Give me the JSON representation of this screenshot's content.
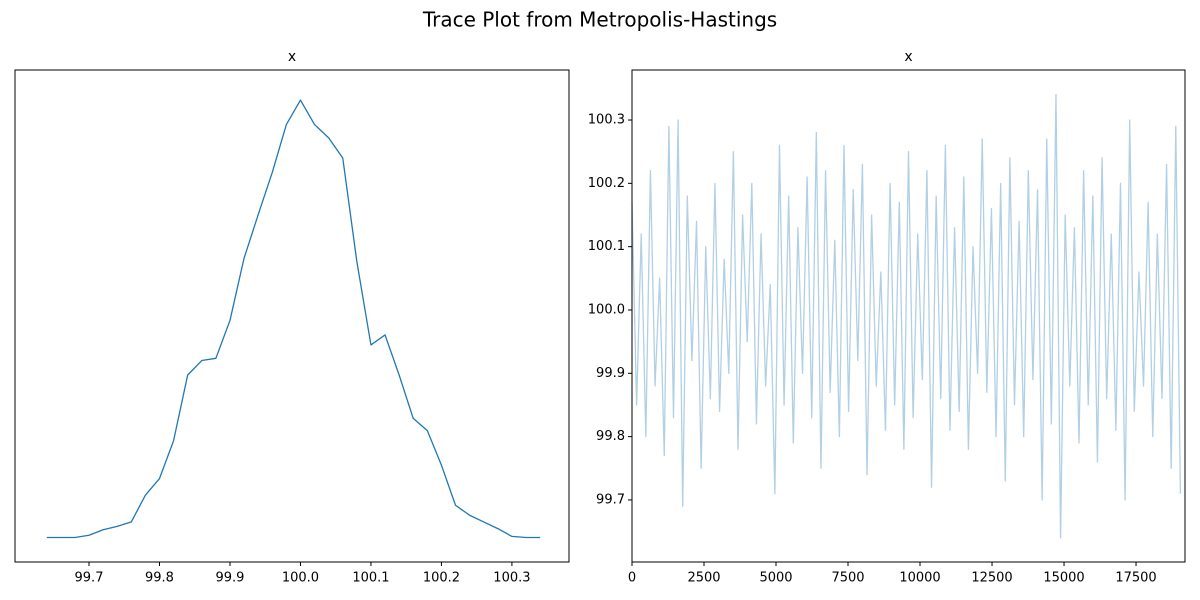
{
  "title": "Trace Plot from Metropolis-Hastings",
  "chart_data": [
    {
      "type": "line",
      "title": "x",
      "color": "#1f77b4",
      "x": [
        99.64,
        99.66,
        99.68,
        99.7,
        99.72,
        99.74,
        99.76,
        99.78,
        99.8,
        99.82,
        99.84,
        99.86,
        99.88,
        99.9,
        99.92,
        99.94,
        99.96,
        99.98,
        100.0,
        100.02,
        100.04,
        100.06,
        100.08,
        100.1,
        100.12,
        100.14,
        100.16,
        100.18,
        100.2,
        100.22,
        100.24,
        100.26,
        100.28,
        100.3,
        100.32,
        100.34
      ],
      "values": [
        0.0,
        0.0,
        0.0,
        0.02,
        0.07,
        0.1,
        0.14,
        0.38,
        0.53,
        0.87,
        1.46,
        1.59,
        1.61,
        1.95,
        2.51,
        2.9,
        3.28,
        3.71,
        3.93,
        3.71,
        3.59,
        3.41,
        2.48,
        1.73,
        1.82,
        1.46,
        1.07,
        0.96,
        0.65,
        0.29,
        0.2,
        0.14,
        0.08,
        0.01,
        0.0,
        0.0
      ],
      "xlim": [
        99.595,
        100.381
      ],
      "ylim": [
        -0.22,
        4.2
      ],
      "xticks": [
        99.7,
        99.8,
        99.9,
        {
          "value": 100,
          "label": "100.0"
        },
        100.1,
        100.2,
        100.3
      ]
    },
    {
      "type": "line",
      "title": "x",
      "color": "#b1cfe5",
      "x": [
        0,
        160,
        320,
        480,
        640,
        800,
        960,
        1120,
        1280,
        1440,
        1600,
        1760,
        1920,
        2080,
        2240,
        2400,
        2560,
        2720,
        2880,
        3040,
        3200,
        3360,
        3520,
        3680,
        3840,
        4000,
        4160,
        4320,
        4480,
        4640,
        4800,
        4960,
        5120,
        5280,
        5440,
        5600,
        5760,
        5920,
        6080,
        6240,
        6400,
        6560,
        6720,
        6880,
        7040,
        7200,
        7360,
        7520,
        7680,
        7840,
        8000,
        8160,
        8320,
        8480,
        8640,
        8800,
        8960,
        9120,
        9280,
        9440,
        9600,
        9760,
        9920,
        10080,
        10240,
        10400,
        10560,
        10720,
        10880,
        11040,
        11200,
        11360,
        11520,
        11680,
        11840,
        12000,
        12160,
        12320,
        12480,
        12640,
        12800,
        12960,
        13120,
        13280,
        13440,
        13600,
        13760,
        13920,
        14080,
        14240,
        14400,
        14560,
        14720,
        14880,
        15040,
        15200,
        15360,
        15520,
        15680,
        15840,
        16000,
        16160,
        16320,
        16480,
        16640,
        16800,
        16960,
        17120,
        17280,
        17440,
        17600,
        17760,
        17920,
        18080,
        18240,
        18400,
        18560,
        18720,
        18880,
        19040
      ],
      "values": [
        100.17,
        99.85,
        100.12,
        99.8,
        100.22,
        99.88,
        100.05,
        99.77,
        100.29,
        99.83,
        100.3,
        99.69,
        100.18,
        99.92,
        100.14,
        99.75,
        100.1,
        99.86,
        100.2,
        99.84,
        100.08,
        99.9,
        100.25,
        99.78,
        100.15,
        99.95,
        100.2,
        99.82,
        100.12,
        99.88,
        100.04,
        99.71,
        100.26,
        99.85,
        100.18,
        99.79,
        100.13,
        99.9,
        100.21,
        99.83,
        100.28,
        99.75,
        100.22,
        99.87,
        100.11,
        99.8,
        100.26,
        99.84,
        100.19,
        99.92,
        100.23,
        99.74,
        100.15,
        99.88,
        100.06,
        99.81,
        100.2,
        99.85,
        100.17,
        99.78,
        100.25,
        99.83,
        100.12,
        99.89,
        100.22,
        99.72,
        100.18,
        99.86,
        100.26,
        99.81,
        100.13,
        99.84,
        100.21,
        99.78,
        100.1,
        99.9,
        100.27,
        99.87,
        100.16,
        99.8,
        100.2,
        99.73,
        100.24,
        99.85,
        100.14,
        99.8,
        100.22,
        99.89,
        100.19,
        99.7,
        100.27,
        99.82,
        100.34,
        99.64,
        100.15,
        99.88,
        100.13,
        99.79,
        100.22,
        99.85,
        100.18,
        99.76,
        100.24,
        99.86,
        100.12,
        99.81,
        100.2,
        99.7,
        100.3,
        99.84,
        100.06,
        99.88,
        100.17,
        99.8,
        100.12,
        99.86,
        100.23,
        99.75,
        100.29,
        99.71
      ],
      "xlim": [
        0,
        19200
      ],
      "ylim": [
        99.602,
        100.379
      ],
      "xticks": [
        0,
        2500,
        5000,
        7500,
        10000,
        12500,
        15000,
        17500
      ],
      "yticks": [
        99.7,
        99.8,
        99.9,
        {
          "value": 100,
          "label": "100.0"
        },
        100.1,
        100.2,
        100.3
      ]
    }
  ]
}
